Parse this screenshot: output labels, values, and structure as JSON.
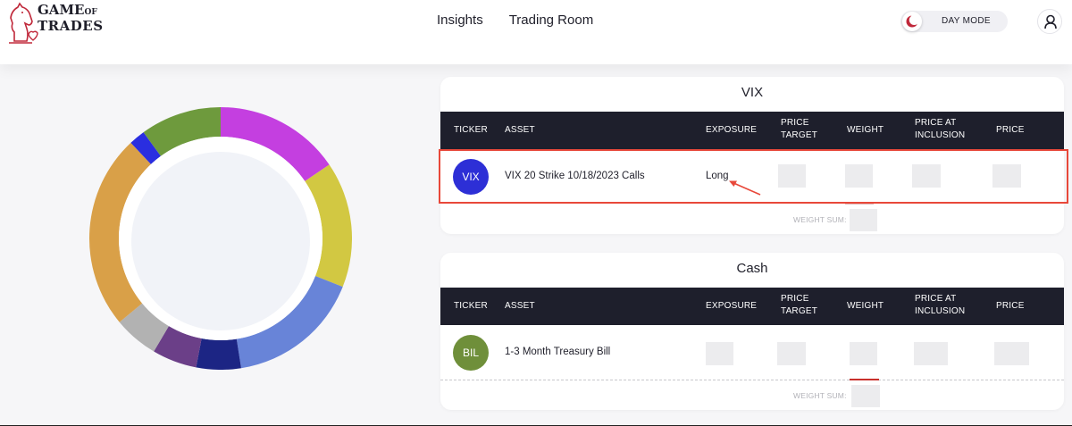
{
  "header": {
    "logo_line1": "GAME",
    "logo_line1_small": "OF",
    "logo_line2": "TRADES",
    "nav": [
      "Insights",
      "Trading Room"
    ],
    "mode_label": "DAY MODE"
  },
  "colors": {
    "header_table": "#1e1f2c",
    "highlight": "#e8483a",
    "vix_badge": "#2d2fd6",
    "bil_badge": "#6f8f3a"
  },
  "donut": {
    "segments": [
      {
        "fraction": 0.155,
        "color": "#c43fe0"
      },
      {
        "fraction": 0.155,
        "color": "#d2c842"
      },
      {
        "fraction": 0.165,
        "color": "#6884d8"
      },
      {
        "fraction": 0.055,
        "color": "#1c2584"
      },
      {
        "fraction": 0.055,
        "color": "#6b3f88"
      },
      {
        "fraction": 0.055,
        "color": "#b2b2b2"
      },
      {
        "fraction": 0.24,
        "color": "#d9a048"
      },
      {
        "fraction": 0.02,
        "color": "#2a2ee0"
      },
      {
        "fraction": 0.1,
        "color": "#6e9a3d"
      }
    ]
  },
  "tables": [
    {
      "title": "VIX",
      "headers": {
        "ticker": "TICKER",
        "asset": "ASSET",
        "exposure": "EXPOSURE",
        "price_target": [
          "PRICE",
          "TARGET"
        ],
        "weight": "WEIGHT",
        "price_at_inclusion": [
          "PRICE AT",
          "INCLUSION"
        ],
        "price": "PRICE"
      },
      "row": {
        "ticker": "VIX",
        "asset": "VIX 20 Strike 10/18/2023 Calls",
        "exposure": "Long"
      },
      "weight_sum_label": "WEIGHT SUM:"
    },
    {
      "title": "Cash",
      "headers": {
        "ticker": "TICKER",
        "asset": "ASSET",
        "exposure": "EXPOSURE",
        "price_target": [
          "PRICE",
          "TARGET"
        ],
        "weight": "WEIGHT",
        "price_at_inclusion": [
          "PRICE AT",
          "INCLUSION"
        ],
        "price": "PRICE"
      },
      "row": {
        "ticker": "BIL",
        "asset": "1-3 Month Treasury Bill",
        "exposure": ""
      },
      "weight_sum_label": "WEIGHT SUM:"
    }
  ]
}
